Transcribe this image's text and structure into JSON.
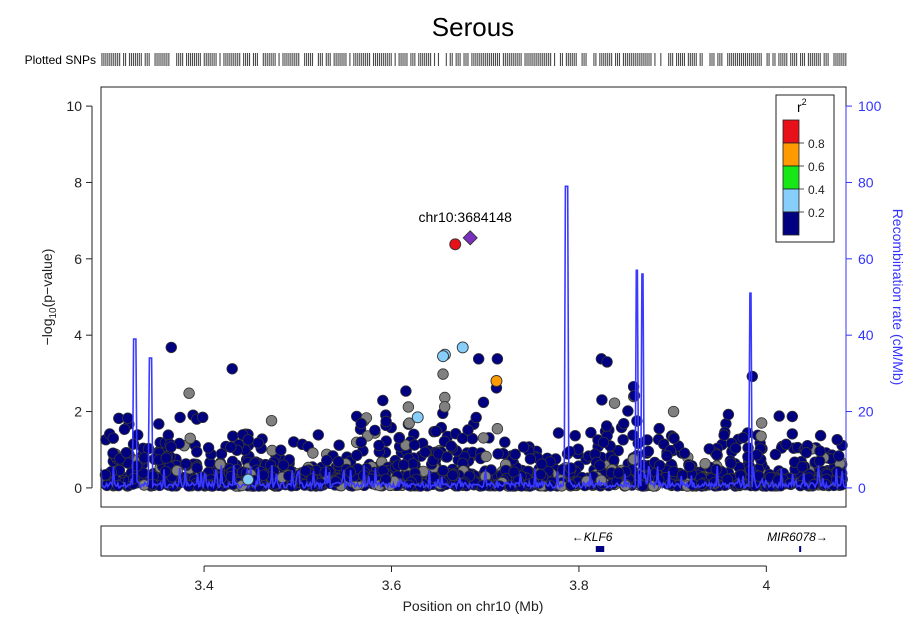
{
  "chart_data": {
    "type": "scatter",
    "title": "Serous",
    "xlabel": "Position on chr10 (Mb)",
    "ylabel": "-log10(p-value)",
    "ylabel_parts": {
      "pre": "−log",
      "sub": "10",
      "post": "(p−value)"
    },
    "y2label": "Recombination rate (cM/Mb)",
    "xlim": [
      3.29,
      4.085
    ],
    "ylim": [
      -0.5,
      10.5
    ],
    "y2lim": [
      -5,
      105
    ],
    "x_ticks": [
      3.4,
      3.6,
      3.8,
      4.0
    ],
    "x_tick_labels": [
      "3.4",
      "3.6",
      "3.8",
      "4"
    ],
    "y_ticks": [
      0,
      2,
      4,
      6,
      8,
      10
    ],
    "y_tick_labels": [
      "0",
      "2",
      "4",
      "6",
      "8",
      "10"
    ],
    "y2_ticks": [
      0,
      20,
      40,
      60,
      80,
      100
    ],
    "y2_tick_labels": [
      "0",
      "20",
      "40",
      "60",
      "80",
      "100"
    ],
    "plotted_snps_label": "Plotted SNPs",
    "legend": {
      "title": "r",
      "title_sup": "2",
      "placement": "top-right",
      "colors": [
        "#e8111a",
        "#ff9a00",
        "#17e617",
        "#87cefa",
        "#000080"
      ],
      "labels": [
        "0.8",
        "0.6",
        "0.4",
        "0.2"
      ]
    },
    "lead_snp": {
      "label": "chr10:3684148",
      "x": 3.684,
      "y": 6.55,
      "color": "#7b2fbe",
      "shape": "diamond"
    },
    "colors": {
      "grey": "#808080",
      "navy": "#000080",
      "line": "#3a3aff",
      "accent": "#3333ff"
    },
    "highlighted_points": [
      {
        "x": 3.668,
        "y": 6.38,
        "r2": "0.8-1.0"
      },
      {
        "x": 3.657,
        "y": 3.49,
        "r2": "0.2-0.4"
      },
      {
        "x": 3.655,
        "y": 3.45,
        "r2": "0.2-0.4"
      },
      {
        "x": 3.676,
        "y": 3.68,
        "r2": "0.2-0.4"
      },
      {
        "x": 3.712,
        "y": 2.8,
        "r2": "0.6-0.8"
      },
      {
        "x": 3.628,
        "y": 1.85,
        "r2": "0.2-0.4"
      },
      {
        "x": 3.447,
        "y": 0.22,
        "r2": "0.2-0.4"
      }
    ],
    "grey_points": [
      {
        "x": 3.384,
        "y": 2.48
      },
      {
        "x": 3.655,
        "y": 2.98
      },
      {
        "x": 3.618,
        "y": 2.12
      },
      {
        "x": 3.838,
        "y": 2.22
      },
      {
        "x": 3.901,
        "y": 2.0
      },
      {
        "x": 3.995,
        "y": 1.7
      },
      {
        "x": 3.713,
        "y": 1.55
      },
      {
        "x": 3.472,
        "y": 1.76
      }
    ],
    "navy_points_labelled": [
      {
        "x": 3.365,
        "y": 3.68
      },
      {
        "x": 3.43,
        "y": 3.12
      },
      {
        "x": 3.693,
        "y": 3.38
      },
      {
        "x": 3.713,
        "y": 3.38
      },
      {
        "x": 3.824,
        "y": 3.38
      },
      {
        "x": 3.83,
        "y": 3.3
      },
      {
        "x": 3.985,
        "y": 2.92
      },
      {
        "x": 3.712,
        "y": 2.62
      }
    ],
    "recombination_peaks": [
      {
        "x": 3.326,
        "rate": 39
      },
      {
        "x": 3.343,
        "rate": 34
      },
      {
        "x": 3.787,
        "rate": 79
      },
      {
        "x": 3.862,
        "rate": 57
      },
      {
        "x": 3.868,
        "rate": 56
      },
      {
        "x": 3.983,
        "rate": 51
      }
    ],
    "genes": [
      {
        "name": "KLF6",
        "strand": "-",
        "start": 3.818,
        "end": 3.827
      },
      {
        "name": "MIR6078",
        "strand": "+",
        "start": 4.035,
        "end": 4.036
      }
    ],
    "grid": false
  }
}
